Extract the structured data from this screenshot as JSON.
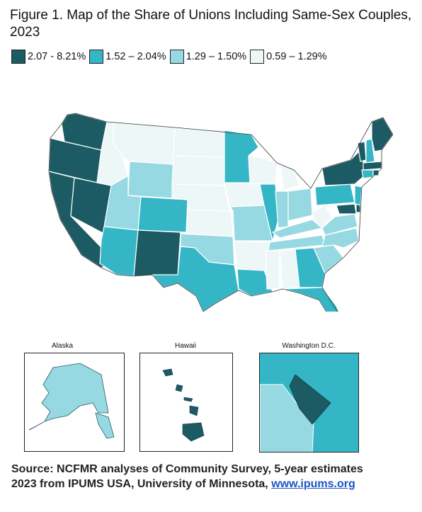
{
  "title": "Figure 1. Map of the Share of Unions Including Same-Sex Couples, 2023",
  "legend": [
    {
      "label": "2.07 - 8.21%",
      "color": "#1c5b63"
    },
    {
      "label": "1.52 – 2.04%",
      "color": "#35b6c6"
    },
    {
      "label": "1.29 – 1.50%",
      "color": "#97d9e2"
    },
    {
      "label": "0.59 – 1.29%",
      "color": "#eef7f8"
    }
  ],
  "insets": {
    "alaska": "Alaska",
    "hawaii": "Hawaii",
    "dc": "Washington D.C."
  },
  "source": {
    "line1": "Source: NCFMR analyses of Community Survey, 5-year estimates",
    "line2_prefix": "2023 from IPUMS USA, University of Minnesota, ",
    "link": "www.ipums.org"
  }
}
